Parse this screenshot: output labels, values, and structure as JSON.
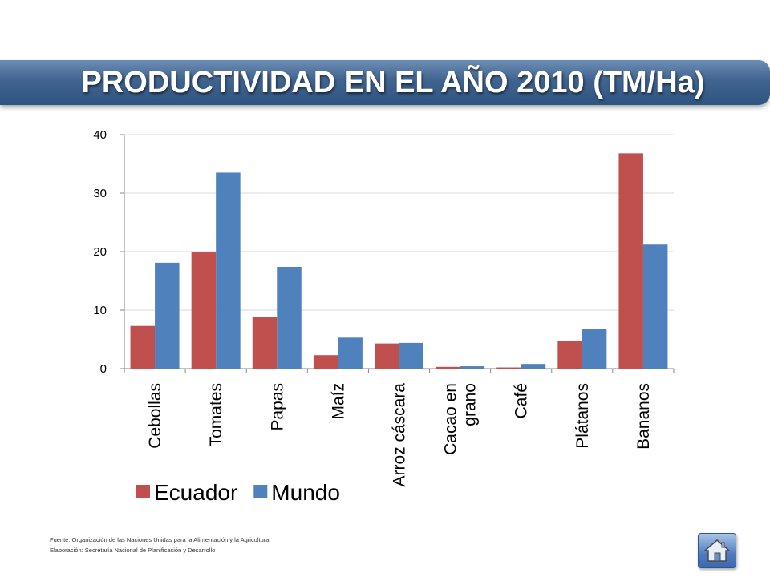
{
  "title": "PRODUCTIVIDAD EN EL AÑO 2010 (TM/Ha)",
  "chart_data": {
    "type": "bar",
    "categories": [
      "Cebollas",
      "Tomates",
      "Papas",
      "Maíz",
      "Arroz cáscara",
      "Cacao en grano",
      "Café",
      "Plátanos",
      "Bananos"
    ],
    "category_lines": [
      [
        "Cebollas"
      ],
      [
        "Tomates"
      ],
      [
        "Papas"
      ],
      [
        "Maíz"
      ],
      [
        "Arroz cáscara"
      ],
      [
        "Cacao en",
        "grano"
      ],
      [
        "Café"
      ],
      [
        "Plátanos"
      ],
      [
        "Bananos"
      ]
    ],
    "series": [
      {
        "name": "Ecuador",
        "color": "#c0504d",
        "values": [
          7.3,
          20.0,
          8.8,
          2.3,
          4.3,
          0.3,
          0.2,
          4.8,
          36.8
        ]
      },
      {
        "name": "Mundo",
        "color": "#4f81bd",
        "values": [
          18.1,
          33.5,
          17.4,
          5.3,
          4.4,
          0.4,
          0.8,
          6.8,
          21.2
        ]
      }
    ],
    "ylim": [
      0,
      40
    ],
    "yticks": [
      0,
      10,
      20,
      30,
      40
    ],
    "grid": true,
    "legend_position": "bottom-left"
  },
  "footnotes": {
    "source": "Fuente: Organización de las Naciones Unidas para la Alimentación y la Agricultura",
    "elaboration": "Elaboración: Secretaría Nacional de Planificación y Desarrollo"
  },
  "home_button": {
    "icon": "home-icon"
  }
}
